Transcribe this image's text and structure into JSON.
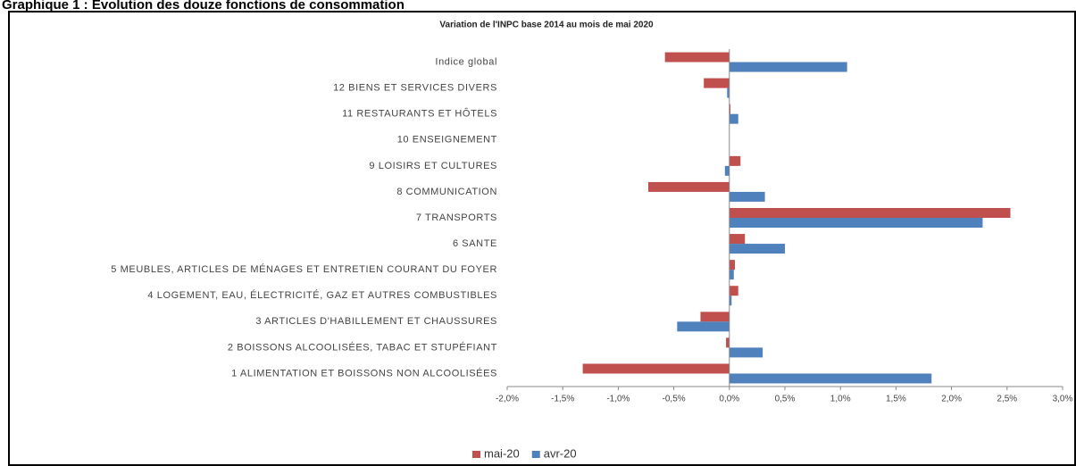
{
  "header": {
    "title": "Graphique 1 : Évolution des douze fonctions de consommation"
  },
  "chart_data": {
    "type": "bar",
    "orientation": "horizontal",
    "title": "Variation de l'INPC base 2014 au mois de mai 2020",
    "categories": [
      "Indice global",
      "12  BIENS ET SERVICES DIVERS",
      "11  RESTAURANTS ET HÔTELS",
      "10  ENSEIGNEMENT",
      "9  LOISIRS ET CULTURES",
      "8  COMMUNICATION",
      "7  TRANSPORTS",
      "6  SANTE",
      "5  MEUBLES, ARTICLES DE MÉNAGES ET ENTRETIEN COURANT DU FOYER",
      "4  LOGEMENT, EAU, ÉLECTRICITÉ, GAZ ET AUTRES COMBUSTIBLES",
      "3  ARTICLES D'HABILLEMENT ET CHAUSSURES",
      "2  BOISSONS ALCOOLISÉES, TABAC ET STUPÉFIANT",
      "1  ALIMENTATION ET BOISSONS NON ALCOOLISÉES"
    ],
    "series": [
      {
        "name": "mai-20",
        "color": "#c0504d",
        "values": [
          -0.58,
          -0.23,
          0.01,
          0,
          0.1,
          -0.73,
          2.53,
          0.14,
          0.05,
          0.08,
          -0.26,
          -0.03,
          -1.32
        ]
      },
      {
        "name": "avr-20",
        "color": "#4f81bd",
        "values": [
          1.06,
          -0.02,
          0.08,
          0,
          -0.04,
          0.32,
          2.28,
          0.5,
          0.04,
          0.02,
          -0.47,
          0.3,
          1.82
        ]
      }
    ],
    "xlim": [
      -2,
      3
    ],
    "xticks": [
      {
        "value": -2,
        "label": "-2,0%"
      },
      {
        "value": -1.5,
        "label": "-1,5%"
      },
      {
        "value": -1,
        "label": "-1,0%"
      },
      {
        "value": -0.5,
        "label": "-0,5%"
      },
      {
        "value": 0,
        "label": "0,0%"
      },
      {
        "value": 0.5,
        "label": "0,5%"
      },
      {
        "value": 1,
        "label": "1,0%"
      },
      {
        "value": 1.5,
        "label": "1,5%"
      },
      {
        "value": 2,
        "label": "2,0%"
      },
      {
        "value": 2.5,
        "label": "2,5%"
      },
      {
        "value": 3,
        "label": "3,0%"
      }
    ],
    "grid": false,
    "legend": "bottom"
  }
}
